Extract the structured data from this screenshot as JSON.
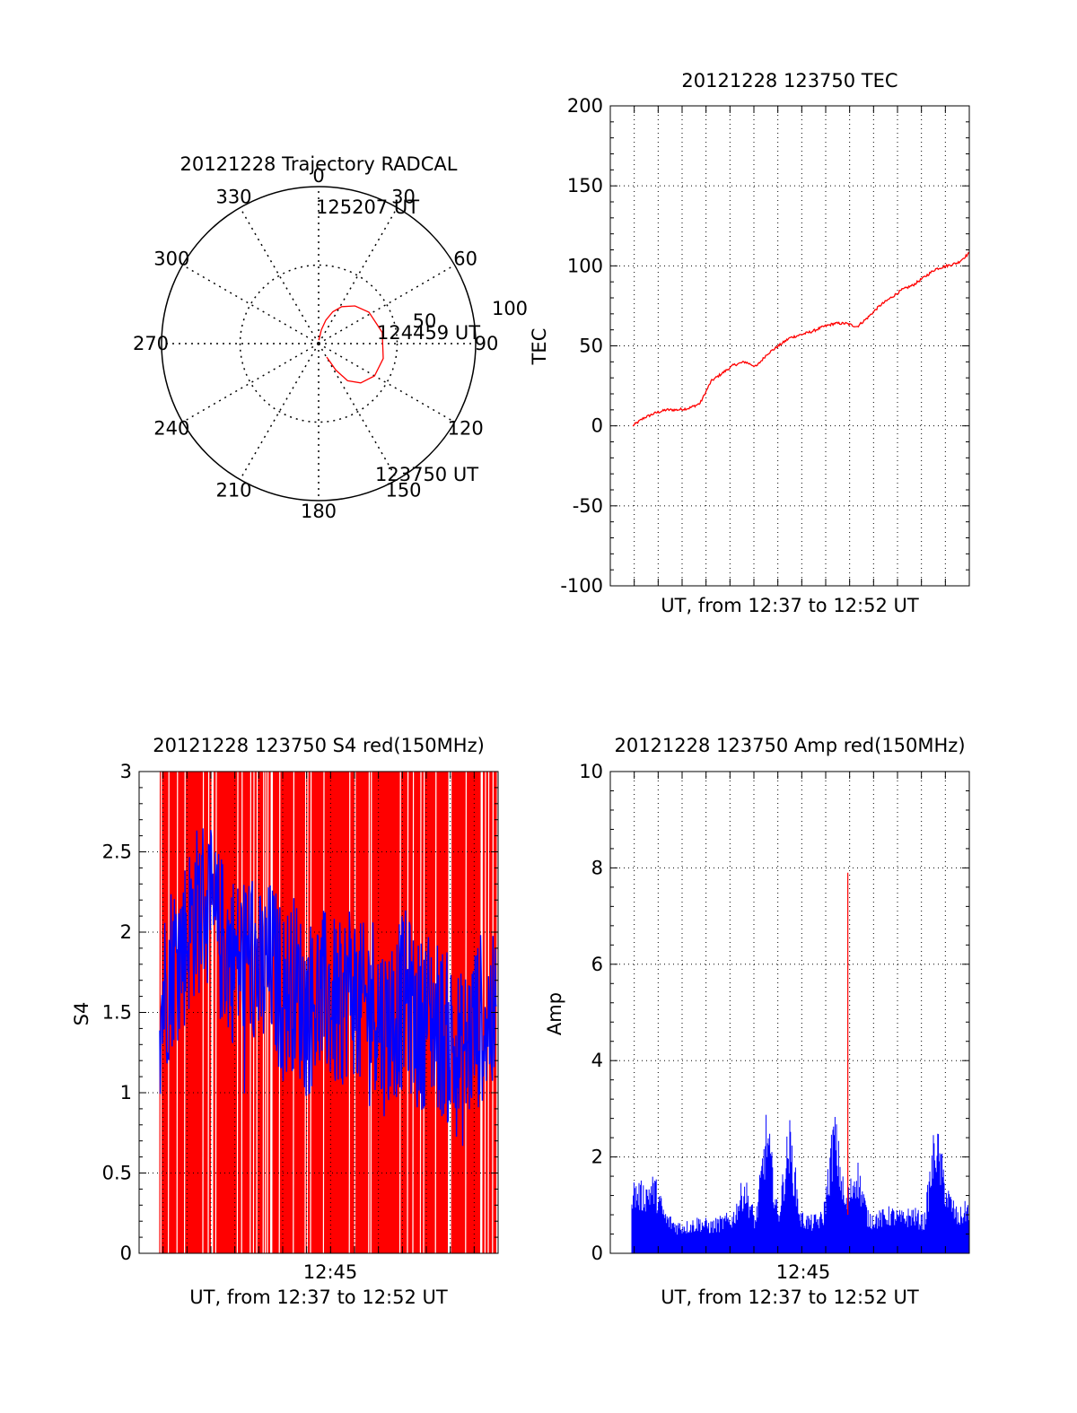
{
  "colors": {
    "red": "#ff0000",
    "blue": "#0000ff",
    "axis": "#000000"
  },
  "chart_data": [
    {
      "type": "polar",
      "title": "20121228 Trajectory RADCAL",
      "azimuth_labels": [
        "0",
        "30",
        "60",
        "90",
        "120",
        "150",
        "180",
        "210",
        "240",
        "270",
        "300",
        "330"
      ],
      "ring_labels": [
        "50",
        "100"
      ],
      "track": {
        "az_deg": [
          2,
          6,
          11,
          17,
          24,
          32,
          44,
          58,
          80,
          103,
          120,
          133,
          142,
          147,
          149
        ],
        "el_deg": [
          93,
          88,
          82,
          76,
          70,
          65,
          60,
          56,
          53,
          52,
          53,
          57,
          63,
          72,
          81
        ]
      },
      "annotations": [
        "125207 UT",
        "124459 UT",
        "123750 UT"
      ],
      "series_color": "red"
    },
    {
      "type": "line",
      "title": "20121228 123750 TEC",
      "xlabel": "UT, from 12:37 to 12:52 UT",
      "ylabel": "TEC",
      "ylim": [
        -100,
        200
      ],
      "yticks": [
        "-100",
        "-50",
        "0",
        "50",
        "100",
        "150",
        "200"
      ],
      "grid": true,
      "series": [
        {
          "color": "red",
          "x": [
            0,
            0.5,
            1,
            1.5,
            2,
            2.5,
            3,
            3.5,
            4,
            4.5,
            5,
            5.5,
            6,
            6.5,
            7,
            7.5,
            8,
            8.5,
            9,
            9.5,
            10,
            10.5,
            11,
            11.5,
            12,
            12.5,
            13,
            13.5,
            14,
            14.5,
            15
          ],
          "y": [
            0,
            5,
            8,
            10,
            10,
            11,
            14,
            28,
            33,
            38,
            40,
            37,
            45,
            50,
            55,
            57,
            59,
            62,
            64,
            64,
            62,
            68,
            75,
            80,
            85,
            88,
            93,
            98,
            100,
            102,
            108
          ]
        }
      ]
    },
    {
      "type": "line",
      "title": "20121228 123750 S4 red(150MHz)",
      "xlabel": "UT, from 12:37 to 12:52 UT",
      "ylabel": "S4",
      "ylim": [
        0,
        3
      ],
      "yticks": [
        "0",
        "0.5",
        "1",
        "1.5",
        "2",
        "2.5",
        "3"
      ],
      "xticks": [
        "12:45"
      ],
      "grid": true,
      "series": [
        {
          "color": "red",
          "style": "dense oscillation between 0 and 3",
          "x_range": [
            0.1,
            15
          ]
        },
        {
          "color": "blue",
          "x": [
            0,
            0.5,
            1,
            1.5,
            2,
            2.5,
            3,
            3.5,
            4,
            4.5,
            5,
            5.5,
            6,
            6.5,
            7,
            7.5,
            8,
            8.5,
            9,
            9.5,
            10,
            10.5,
            11,
            11.5,
            12,
            12.5,
            13,
            13.5,
            14,
            14.5,
            15
          ],
          "y": [
            1.5,
            1.8,
            1.9,
            2.1,
            2.2,
            2.0,
            1.9,
            1.8,
            1.9,
            1.7,
            1.8,
            1.6,
            1.7,
            1.5,
            1.6,
            1.6,
            1.5,
            1.7,
            1.5,
            1.6,
            1.4,
            1.5,
            1.6,
            1.4,
            1.5,
            1.4,
            1.3,
            1.2,
            1.4,
            1.5,
            1.4
          ]
        }
      ]
    },
    {
      "type": "line",
      "title": "20121228 123750 Amp red(150MHz)",
      "xlabel": "UT, from 12:37 to 12:52 UT",
      "ylabel": "Amp",
      "ylim": [
        0,
        10
      ],
      "yticks": [
        "0",
        "2",
        "4",
        "6",
        "8",
        "10"
      ],
      "xticks": [
        "12:45"
      ],
      "grid": true,
      "series": [
        {
          "color": "red",
          "spike": {
            "x": 9.6,
            "y": 7.9
          }
        },
        {
          "color": "blue",
          "x": [
            0,
            0.5,
            1,
            1.5,
            2,
            2.5,
            3,
            3.5,
            4,
            4.5,
            5,
            5.5,
            6,
            6.5,
            7,
            7.5,
            8,
            8.5,
            9,
            9.5,
            10,
            10.5,
            11,
            11.5,
            12,
            12.5,
            13,
            13.5,
            14,
            14.5,
            15
          ],
          "y": [
            1.6,
            1.5,
            1.7,
            0.9,
            0.7,
            0.7,
            0.8,
            0.7,
            0.8,
            0.9,
            1.7,
            0.8,
            3.1,
            0.9,
            2.9,
            0.9,
            0.8,
            0.9,
            3.1,
            1.2,
            2.1,
            0.9,
            0.9,
            1.0,
            0.9,
            1.0,
            0.8,
            2.9,
            1.5,
            0.9,
            1.2
          ]
        }
      ]
    }
  ]
}
